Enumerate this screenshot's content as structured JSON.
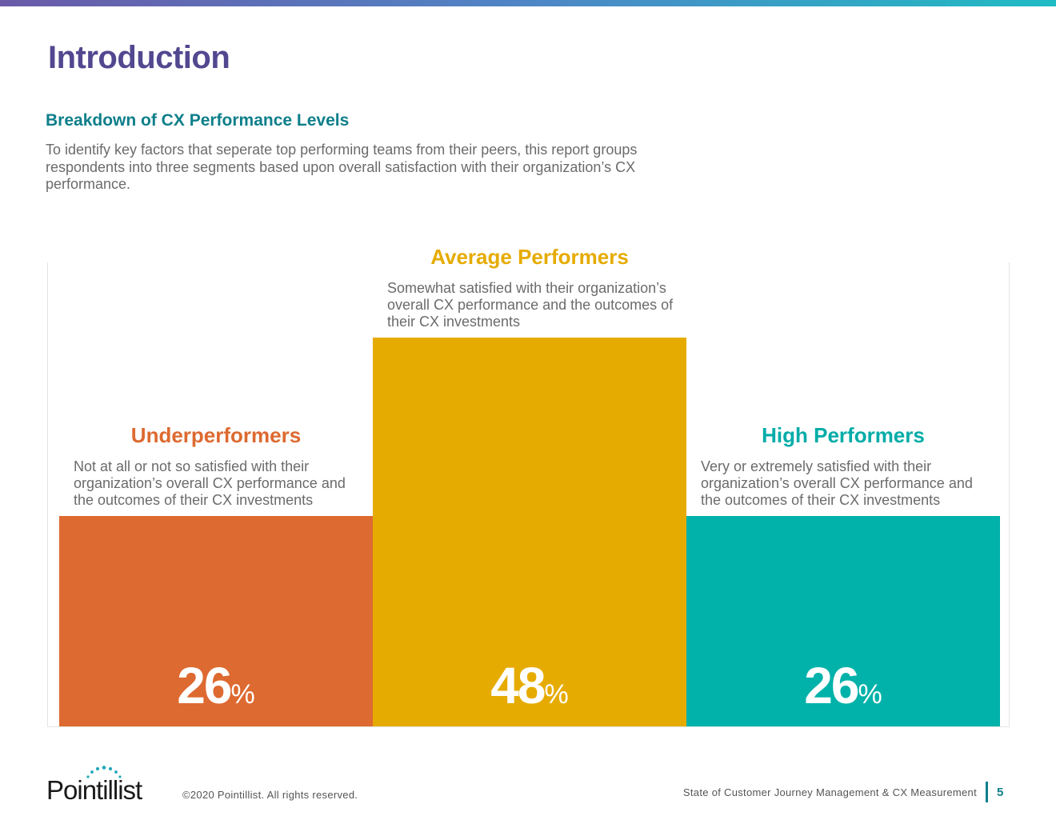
{
  "header": {
    "title": "Introduction",
    "gradient_colors": [
      "#6a5aa8",
      "#4f86c6",
      "#1fbcc4"
    ]
  },
  "section": {
    "title": "Breakdown of CX Performance Levels",
    "text": "To identify key factors that seperate top performing teams from their peers, this report groups respondents into three segments based upon overall satisfaction with their organization’s CX performance."
  },
  "chart_data": {
    "type": "bar",
    "categories": [
      "Underperformers",
      "Average Performers",
      "High Performers"
    ],
    "values": [
      26,
      48,
      26
    ],
    "unit": "%",
    "descriptions": [
      "Not at all or not so satisfied with their organization’s overall CX performance and the outcomes of their CX investments",
      "Somewhat satisfied with their organization’s overall CX performance and the outcomes of their CX investments",
      "Very or extremely satisfied with their organization’s overall CX performance and the outcomes of their CX investments"
    ],
    "colors": [
      "#dd6a30",
      "#e6ab00",
      "#00b2a9"
    ],
    "title_colors": [
      "#dd6a30",
      "#e6ab00",
      "#00aca8"
    ],
    "ylim": [
      0,
      48
    ],
    "grid": false,
    "legend": "none"
  },
  "footer": {
    "logo_text": "Pointillist",
    "copyright": "©2020 Pointillist. All rights reserved.",
    "report_title": "State of Customer Journey Management & CX Measurement",
    "page_number": "5",
    "accent": "#0e7f8a"
  }
}
